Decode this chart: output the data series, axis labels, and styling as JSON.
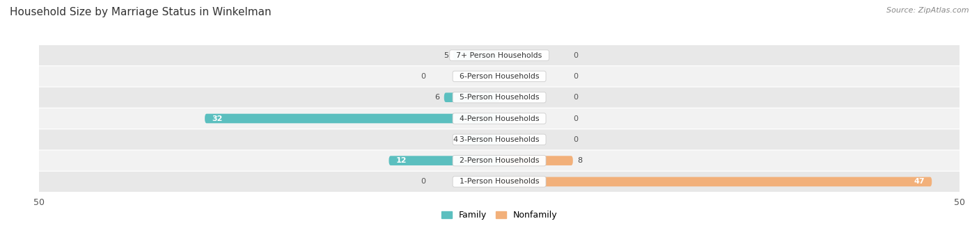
{
  "title": "Household Size by Marriage Status in Winkelman",
  "source": "Source: ZipAtlas.com",
  "categories": [
    "7+ Person Households",
    "6-Person Households",
    "5-Person Households",
    "4-Person Households",
    "3-Person Households",
    "2-Person Households",
    "1-Person Households"
  ],
  "family_values": [
    5,
    0,
    6,
    32,
    4,
    12,
    0
  ],
  "nonfamily_values": [
    0,
    0,
    0,
    0,
    0,
    8,
    47
  ],
  "family_color": "#5bbfbf",
  "nonfamily_color": "#f2b07a",
  "row_bg_color": "#e8e8e8",
  "row_bg_alt": "#f2f2f2",
  "xlim": 50,
  "bar_height": 0.45,
  "figsize": [
    14.06,
    3.41
  ],
  "dpi": 100
}
